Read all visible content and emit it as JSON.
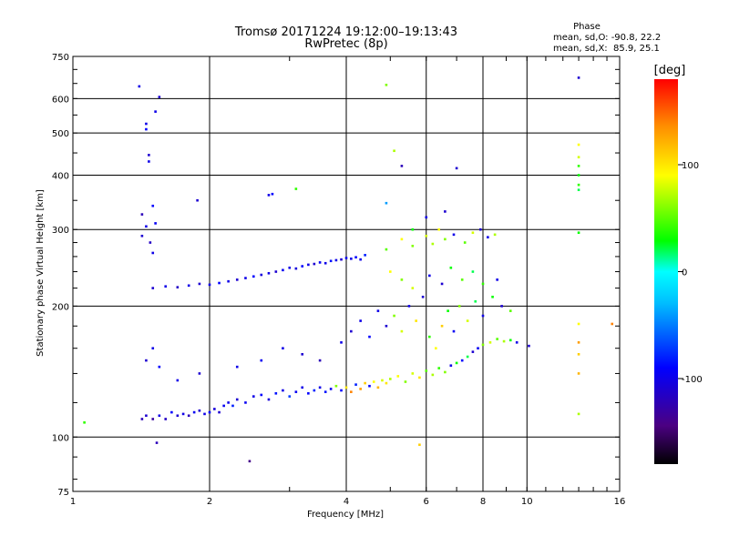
{
  "chart_data": {
    "type": "scatter",
    "title": "Tromsø 20171224 19:12:00–19:13:43",
    "subtitle": "RwPretec (8p)",
    "xlabel": "Frequency [MHz]",
    "ylabel": "Stationary phase Virtual Height [km]",
    "x_scale": "log",
    "y_scale": "log",
    "xlim": [
      1,
      16
    ],
    "ylim": [
      75,
      750
    ],
    "x_ticks": [
      1,
      2,
      4,
      6,
      8,
      10,
      16
    ],
    "y_ticks": [
      75,
      100,
      200,
      300,
      400,
      500,
      600,
      750
    ],
    "grid": true,
    "stats": {
      "heading": "Phase",
      "o_line": "mean, sd,O: -90.8, 22.2",
      "x_line": "mean, sd,X:  85.9, 25.1"
    },
    "colorbar": {
      "label": "[deg]",
      "range": [
        -180,
        180
      ],
      "ticks": [
        100,
        0,
        -100
      ],
      "colors": [
        "#000000",
        "#4b0082",
        "#0000ff",
        "#00bfff",
        "#00ffff",
        "#00ff00",
        "#ffff00",
        "#ff8c00",
        "#ff0000"
      ]
    },
    "series": [
      {
        "values": [
          {
            "x": 1.06,
            "y": 108,
            "c": 40
          },
          {
            "x": 1.42,
            "y": 110,
            "c": -120
          },
          {
            "x": 1.45,
            "y": 112,
            "c": -110
          },
          {
            "x": 1.5,
            "y": 110,
            "c": -130
          },
          {
            "x": 1.55,
            "y": 112,
            "c": -100
          },
          {
            "x": 1.6,
            "y": 110,
            "c": -115
          },
          {
            "x": 1.65,
            "y": 114,
            "c": -90
          },
          {
            "x": 1.7,
            "y": 112,
            "c": -110
          },
          {
            "x": 1.75,
            "y": 113,
            "c": -100
          },
          {
            "x": 1.8,
            "y": 112,
            "c": -120
          },
          {
            "x": 1.85,
            "y": 114,
            "c": -95
          },
          {
            "x": 1.9,
            "y": 115,
            "c": -110
          },
          {
            "x": 1.95,
            "y": 113,
            "c": -100
          },
          {
            "x": 2.0,
            "y": 114,
            "c": -90
          },
          {
            "x": 2.05,
            "y": 116,
            "c": -105
          },
          {
            "x": 2.1,
            "y": 114,
            "c": -110
          },
          {
            "x": 2.15,
            "y": 118,
            "c": -95
          },
          {
            "x": 2.2,
            "y": 120,
            "c": -100
          },
          {
            "x": 2.25,
            "y": 118,
            "c": -80
          },
          {
            "x": 2.3,
            "y": 122,
            "c": -110
          },
          {
            "x": 2.4,
            "y": 120,
            "c": -95
          },
          {
            "x": 2.5,
            "y": 124,
            "c": -100
          },
          {
            "x": 2.6,
            "y": 125,
            "c": -90
          },
          {
            "x": 2.7,
            "y": 122,
            "c": -105
          },
          {
            "x": 2.8,
            "y": 126,
            "c": -85
          },
          {
            "x": 2.9,
            "y": 128,
            "c": -100
          },
          {
            "x": 3.0,
            "y": 124,
            "c": -70
          },
          {
            "x": 3.1,
            "y": 127,
            "c": -95
          },
          {
            "x": 3.2,
            "y": 130,
            "c": -100
          },
          {
            "x": 3.3,
            "y": 126,
            "c": -90
          },
          {
            "x": 3.4,
            "y": 128,
            "c": -80
          },
          {
            "x": 3.5,
            "y": 130,
            "c": -100
          },
          {
            "x": 3.6,
            "y": 127,
            "c": -85
          },
          {
            "x": 3.7,
            "y": 129,
            "c": -95
          },
          {
            "x": 3.8,
            "y": 131,
            "c": 60
          },
          {
            "x": 3.9,
            "y": 128,
            "c": -90
          },
          {
            "x": 4.0,
            "y": 130,
            "c": 100
          },
          {
            "x": 4.1,
            "y": 127,
            "c": 140
          },
          {
            "x": 4.2,
            "y": 132,
            "c": -80
          },
          {
            "x": 4.3,
            "y": 129,
            "c": 130
          },
          {
            "x": 4.4,
            "y": 133,
            "c": 110
          },
          {
            "x": 4.5,
            "y": 131,
            "c": -90
          },
          {
            "x": 4.6,
            "y": 134,
            "c": 90
          },
          {
            "x": 4.7,
            "y": 130,
            "c": 120
          },
          {
            "x": 4.8,
            "y": 135,
            "c": 80
          },
          {
            "x": 4.9,
            "y": 133,
            "c": 100
          },
          {
            "x": 5.0,
            "y": 136,
            "c": 70
          },
          {
            "x": 5.2,
            "y": 138,
            "c": 90
          },
          {
            "x": 5.4,
            "y": 134,
            "c": 60
          },
          {
            "x": 5.6,
            "y": 140,
            "c": 80
          },
          {
            "x": 5.8,
            "y": 137,
            "c": 100
          },
          {
            "x": 6.0,
            "y": 142,
            "c": 50
          },
          {
            "x": 6.2,
            "y": 139,
            "c": 70
          },
          {
            "x": 6.4,
            "y": 144,
            "c": 40
          },
          {
            "x": 6.6,
            "y": 141,
            "c": 60
          },
          {
            "x": 6.8,
            "y": 146,
            "c": -100
          },
          {
            "x": 7.0,
            "y": 148,
            "c": 30
          },
          {
            "x": 7.2,
            "y": 150,
            "c": -90
          },
          {
            "x": 7.4,
            "y": 153,
            "c": 20
          },
          {
            "x": 7.6,
            "y": 157,
            "c": -110
          },
          {
            "x": 7.8,
            "y": 160,
            "c": -95
          },
          {
            "x": 8.0,
            "y": 163,
            "c": 60
          },
          {
            "x": 8.3,
            "y": 165,
            "c": 80
          },
          {
            "x": 8.6,
            "y": 168,
            "c": 50
          },
          {
            "x": 8.9,
            "y": 166,
            "c": 70
          },
          {
            "x": 9.2,
            "y": 167,
            "c": 30
          },
          {
            "x": 9.5,
            "y": 165,
            "c": -100
          },
          {
            "x": 10.1,
            "y": 162,
            "c": -110
          },
          {
            "x": 1.45,
            "y": 150,
            "c": -110
          },
          {
            "x": 1.5,
            "y": 160,
            "c": -100
          },
          {
            "x": 1.55,
            "y": 145,
            "c": -90
          },
          {
            "x": 1.7,
            "y": 135,
            "c": -100
          },
          {
            "x": 1.9,
            "y": 140,
            "c": -110
          },
          {
            "x": 2.3,
            "y": 145,
            "c": -100
          },
          {
            "x": 2.6,
            "y": 150,
            "c": -95
          },
          {
            "x": 2.9,
            "y": 160,
            "c": -100
          },
          {
            "x": 3.2,
            "y": 155,
            "c": -110
          },
          {
            "x": 3.5,
            "y": 150,
            "c": -120
          },
          {
            "x": 3.9,
            "y": 165,
            "c": -100
          },
          {
            "x": 4.1,
            "y": 175,
            "c": -110
          },
          {
            "x": 4.3,
            "y": 185,
            "c": -100
          },
          {
            "x": 4.5,
            "y": 170,
            "c": -90
          },
          {
            "x": 4.7,
            "y": 195,
            "c": -100
          },
          {
            "x": 4.9,
            "y": 180,
            "c": -110
          },
          {
            "x": 5.1,
            "y": 190,
            "c": 60
          },
          {
            "x": 5.3,
            "y": 175,
            "c": 80
          },
          {
            "x": 5.5,
            "y": 200,
            "c": -100
          },
          {
            "x": 5.7,
            "y": 185,
            "c": 100
          },
          {
            "x": 5.9,
            "y": 210,
            "c": -110
          },
          {
            "x": 6.1,
            "y": 170,
            "c": 40
          },
          {
            "x": 6.3,
            "y": 160,
            "c": 90
          },
          {
            "x": 6.5,
            "y": 180,
            "c": 110
          },
          {
            "x": 6.7,
            "y": 195,
            "c": 30
          },
          {
            "x": 6.9,
            "y": 175,
            "c": -95
          },
          {
            "x": 7.1,
            "y": 200,
            "c": 60
          },
          {
            "x": 7.4,
            "y": 185,
            "c": 80
          },
          {
            "x": 7.7,
            "y": 205,
            "c": 20
          },
          {
            "x": 8.0,
            "y": 190,
            "c": -100
          },
          {
            "x": 8.4,
            "y": 210,
            "c": 30
          },
          {
            "x": 8.8,
            "y": 200,
            "c": -110
          },
          {
            "x": 9.2,
            "y": 195,
            "c": 50
          },
          {
            "x": 1.5,
            "y": 220,
            "c": -110
          },
          {
            "x": 1.6,
            "y": 222,
            "c": -100
          },
          {
            "x": 1.7,
            "y": 221,
            "c": -115
          },
          {
            "x": 1.8,
            "y": 223,
            "c": -100
          },
          {
            "x": 1.9,
            "y": 225,
            "c": -110
          },
          {
            "x": 2.0,
            "y": 224,
            "c": -100
          },
          {
            "x": 2.1,
            "y": 226,
            "c": -90
          },
          {
            "x": 2.2,
            "y": 228,
            "c": -100
          },
          {
            "x": 2.3,
            "y": 230,
            "c": -110
          },
          {
            "x": 2.4,
            "y": 232,
            "c": -100
          },
          {
            "x": 2.5,
            "y": 234,
            "c": -90
          },
          {
            "x": 2.6,
            "y": 236,
            "c": -105
          },
          {
            "x": 2.7,
            "y": 238,
            "c": -100
          },
          {
            "x": 2.8,
            "y": 240,
            "c": -110
          },
          {
            "x": 2.9,
            "y": 242,
            "c": -95
          },
          {
            "x": 3.0,
            "y": 245,
            "c": -100
          },
          {
            "x": 3.1,
            "y": 244,
            "c": -105
          },
          {
            "x": 3.2,
            "y": 247,
            "c": -90
          },
          {
            "x": 3.3,
            "y": 249,
            "c": -100
          },
          {
            "x": 3.4,
            "y": 250,
            "c": -110
          },
          {
            "x": 3.5,
            "y": 252,
            "c": -95
          },
          {
            "x": 3.6,
            "y": 251,
            "c": -100
          },
          {
            "x": 3.7,
            "y": 254,
            "c": -85
          },
          {
            "x": 3.8,
            "y": 255,
            "c": -100
          },
          {
            "x": 3.9,
            "y": 256,
            "c": -110
          },
          {
            "x": 4.0,
            "y": 258,
            "c": -95
          },
          {
            "x": 4.1,
            "y": 257,
            "c": -100
          },
          {
            "x": 4.2,
            "y": 259,
            "c": -90
          },
          {
            "x": 4.3,
            "y": 256,
            "c": -100
          },
          {
            "x": 4.4,
            "y": 262,
            "c": -80
          },
          {
            "x": 4.9,
            "y": 270,
            "c": 50
          },
          {
            "x": 5.3,
            "y": 285,
            "c": 90
          },
          {
            "x": 5.6,
            "y": 275,
            "c": 60
          },
          {
            "x": 6.0,
            "y": 290,
            "c": 80
          },
          {
            "x": 6.2,
            "y": 278,
            "c": 70
          },
          {
            "x": 6.4,
            "y": 300,
            "c": 90
          },
          {
            "x": 6.6,
            "y": 285,
            "c": 60
          },
          {
            "x": 6.9,
            "y": 292,
            "c": -100
          },
          {
            "x": 7.3,
            "y": 280,
            "c": 50
          },
          {
            "x": 7.6,
            "y": 295,
            "c": 80
          },
          {
            "x": 7.9,
            "y": 300,
            "c": -110
          },
          {
            "x": 8.2,
            "y": 288,
            "c": -100
          },
          {
            "x": 8.5,
            "y": 292,
            "c": 70
          },
          {
            "x": 5.0,
            "y": 240,
            "c": 90
          },
          {
            "x": 5.3,
            "y": 230,
            "c": 60
          },
          {
            "x": 5.6,
            "y": 220,
            "c": 80
          },
          {
            "x": 6.1,
            "y": 235,
            "c": -100
          },
          {
            "x": 6.5,
            "y": 225,
            "c": -110
          },
          {
            "x": 6.8,
            "y": 245,
            "c": 30
          },
          {
            "x": 7.2,
            "y": 230,
            "c": 50
          },
          {
            "x": 7.6,
            "y": 240,
            "c": 20
          },
          {
            "x": 8.0,
            "y": 225,
            "c": 40
          },
          {
            "x": 8.6,
            "y": 230,
            "c": -100
          },
          {
            "x": 1.4,
            "y": 640,
            "c": -100
          },
          {
            "x": 1.45,
            "y": 525,
            "c": -100
          },
          {
            "x": 1.45,
            "y": 510,
            "c": -90
          },
          {
            "x": 1.47,
            "y": 445,
            "c": -110
          },
          {
            "x": 1.47,
            "y": 430,
            "c": -100
          },
          {
            "x": 1.5,
            "y": 340,
            "c": -90
          },
          {
            "x": 1.52,
            "y": 560,
            "c": -100
          },
          {
            "x": 1.55,
            "y": 605,
            "c": -110
          },
          {
            "x": 1.42,
            "y": 325,
            "c": -120
          },
          {
            "x": 1.42,
            "y": 290,
            "c": -110
          },
          {
            "x": 1.45,
            "y": 305,
            "c": -100
          },
          {
            "x": 1.48,
            "y": 280,
            "c": -115
          },
          {
            "x": 1.5,
            "y": 265,
            "c": -100
          },
          {
            "x": 1.52,
            "y": 310,
            "c": -95
          },
          {
            "x": 1.88,
            "y": 350,
            "c": -110
          },
          {
            "x": 2.7,
            "y": 360,
            "c": -100
          },
          {
            "x": 2.75,
            "y": 362,
            "c": -90
          },
          {
            "x": 3.1,
            "y": 372,
            "c": 40
          },
          {
            "x": 4.9,
            "y": 645,
            "c": 60
          },
          {
            "x": 5.1,
            "y": 455,
            "c": 70
          },
          {
            "x": 5.3,
            "y": 420,
            "c": -120
          },
          {
            "x": 4.9,
            "y": 345,
            "c": -40
          },
          {
            "x": 5.6,
            "y": 300,
            "c": 30
          },
          {
            "x": 6.0,
            "y": 320,
            "c": -100
          },
          {
            "x": 6.6,
            "y": 330,
            "c": -110
          },
          {
            "x": 7.0,
            "y": 415,
            "c": -110
          },
          {
            "x": 13.0,
            "y": 670,
            "c": -110
          },
          {
            "x": 13.0,
            "y": 470,
            "c": 90
          },
          {
            "x": 13.0,
            "y": 440,
            "c": 80
          },
          {
            "x": 13.0,
            "y": 420,
            "c": 40
          },
          {
            "x": 13.0,
            "y": 400,
            "c": 30
          },
          {
            "x": 13.0,
            "y": 380,
            "c": 40
          },
          {
            "x": 13.0,
            "y": 370,
            "c": 20
          },
          {
            "x": 13.0,
            "y": 295,
            "c": 30
          },
          {
            "x": 13.0,
            "y": 182,
            "c": 90
          },
          {
            "x": 13.0,
            "y": 165,
            "c": 130
          },
          {
            "x": 13.0,
            "y": 155,
            "c": 110
          },
          {
            "x": 13.0,
            "y": 140,
            "c": 120
          },
          {
            "x": 13.0,
            "y": 113,
            "c": 70
          },
          {
            "x": 15.4,
            "y": 182,
            "c": 140
          },
          {
            "x": 1.53,
            "y": 97,
            "c": -120
          },
          {
            "x": 2.45,
            "y": 88,
            "c": -140
          },
          {
            "x": 5.8,
            "y": 96,
            "c": 110
          }
        ]
      }
    ]
  }
}
